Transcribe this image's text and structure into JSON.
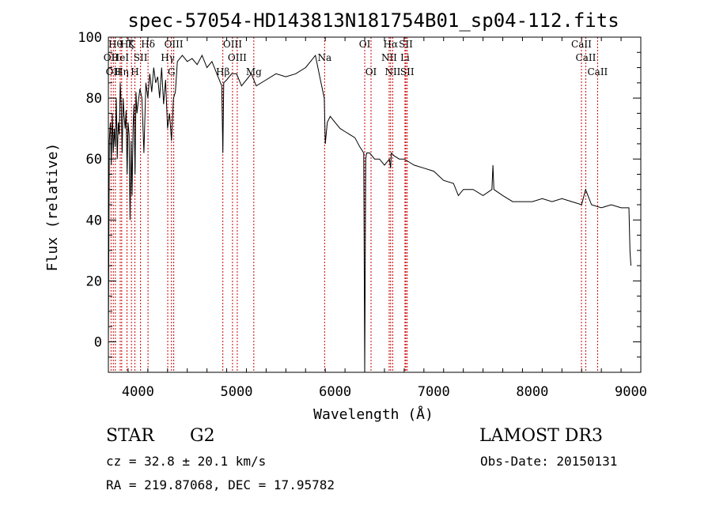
{
  "chart_data": {
    "type": "line",
    "title": "spec-57054-HD143813N181754B01_sp04-112.fits",
    "xlabel": "Wavelength (Å)",
    "ylabel": "Flux (relative)",
    "xlim": [
      3700,
      9100
    ],
    "ylim": [
      -10,
      100
    ],
    "x_ticks": [
      4000,
      5000,
      6000,
      7000,
      8000,
      9000
    ],
    "y_ticks": [
      0,
      20,
      40,
      60,
      80,
      100
    ],
    "grid": false,
    "series": [
      {
        "x": [
          3700,
          3710,
          3720,
          3730,
          3740,
          3750,
          3760,
          3770,
          3780,
          3790,
          3800,
          3810,
          3820,
          3830,
          3840,
          3850,
          3860,
          3870,
          3880,
          3890,
          3900,
          3910,
          3920,
          3930,
          3940,
          3950,
          3960,
          3970,
          3980,
          3990,
          4000,
          4020,
          4040,
          4060,
          4080,
          4100,
          4120,
          4140,
          4160,
          4180,
          4200,
          4220,
          4240,
          4260,
          4280,
          4300,
          4320,
          4340,
          4360,
          4380,
          4400,
          4450,
          4500,
          4550,
          4600,
          4650,
          4700,
          4750,
          4800,
          4850,
          4861,
          4870,
          4900,
          4950,
          5000,
          5050,
          5100,
          5150,
          5200,
          5300,
          5400,
          5500,
          5600,
          5700,
          5750,
          5800,
          5850,
          5890,
          5900,
          5920,
          5950,
          6000,
          6050,
          6100,
          6150,
          6200,
          6250,
          6290,
          6300,
          6310,
          6320,
          6350,
          6400,
          6450,
          6500,
          6550,
          6563,
          6570,
          6600,
          6650,
          6700,
          6750,
          6800,
          6900,
          7000,
          7100,
          7200,
          7250,
          7300,
          7400,
          7500,
          7590,
          7600,
          7610,
          7700,
          7800,
          7900,
          8000,
          8100,
          8200,
          8300,
          8400,
          8500,
          8540,
          8600,
          8700,
          8800,
          8900,
          8980,
          8990,
          9000
        ],
        "y": [
          0,
          66,
          72,
          58,
          75,
          62,
          70,
          64,
          80,
          60,
          72,
          68,
          85,
          78,
          62,
          80,
          74,
          70,
          76,
          55,
          72,
          68,
          40,
          66,
          48,
          70,
          78,
          55,
          82,
          75,
          78,
          83,
          80,
          62,
          85,
          80,
          88,
          82,
          90,
          85,
          87,
          80,
          90,
          78,
          86,
          70,
          75,
          66,
          80,
          82,
          92,
          94,
          92,
          93,
          91,
          94,
          90,
          92,
          88,
          84,
          62,
          85,
          86,
          88,
          88,
          84,
          86,
          88,
          84,
          86,
          88,
          87,
          88,
          90,
          92,
          94,
          86,
          80,
          65,
          72,
          74,
          72,
          70,
          69,
          68,
          67,
          64,
          62,
          -10,
          60,
          62,
          62,
          60,
          60,
          58,
          60,
          57,
          62,
          61,
          60,
          60,
          59,
          58,
          57,
          56,
          53,
          52,
          48,
          50,
          50,
          48,
          50,
          58,
          50,
          48,
          46,
          46,
          46,
          47,
          46,
          47,
          46,
          45,
          50,
          45,
          44,
          45,
          44,
          44,
          30,
          25
        ]
      }
    ],
    "line_markers": [
      {
        "wl": 3727,
        "label": "OII",
        "row": 1
      },
      {
        "wl": 3750,
        "label": "OII",
        "row": 2
      },
      {
        "wl": 3771,
        "label": "Hθ",
        "row": 0
      },
      {
        "wl": 3820,
        "label": "HeI",
        "row": 1
      },
      {
        "wl": 3835,
        "label": "Hη",
        "row": 2
      },
      {
        "wl": 3889,
        "label": "Hζ",
        "row": 0
      },
      {
        "wl": 3934,
        "label": "K",
        "row": 0
      },
      {
        "wl": 3969,
        "label": "H",
        "row": 2
      },
      {
        "wl": 4026,
        "label": "SII",
        "row": 1
      },
      {
        "wl": 4102,
        "label": "Hδ",
        "row": 0
      },
      {
        "wl": 4302,
        "label": "Hγ",
        "row": 1
      },
      {
        "wl": 4340,
        "label": "G",
        "row": 2
      },
      {
        "wl": 4363,
        "label": "OIII",
        "row": 0
      },
      {
        "wl": 4861,
        "label": "Hβ",
        "row": 2
      },
      {
        "wl": 4959,
        "label": "OIII",
        "row": 0
      },
      {
        "wl": 5007,
        "label": "OIII",
        "row": 1
      },
      {
        "wl": 5175,
        "label": "Mg",
        "row": 2
      },
      {
        "wl": 5893,
        "label": "Na",
        "row": 1
      },
      {
        "wl": 6300,
        "label": "OI",
        "row": 0
      },
      {
        "wl": 6364,
        "label": "OI",
        "row": 2
      },
      {
        "wl": 6548,
        "label": "NII",
        "row": 1
      },
      {
        "wl": 6563,
        "label": "Hα",
        "row": 0
      },
      {
        "wl": 6584,
        "label": "NII",
        "row": 2
      },
      {
        "wl": 6708,
        "label": "Li",
        "row": 1
      },
      {
        "wl": 6717,
        "label": "SII",
        "row": 0
      },
      {
        "wl": 6731,
        "label": "SII",
        "row": 2
      },
      {
        "wl": 8498,
        "label": "CaII",
        "row": 0
      },
      {
        "wl": 8542,
        "label": "CaII",
        "row": 1
      },
      {
        "wl": 8662,
        "label": "CaII",
        "row": 2
      }
    ],
    "marker_color": "#cc0000"
  },
  "info": {
    "class_label": "STAR",
    "subclass": "G2",
    "survey": "LAMOST DR3",
    "cz": "cz = 32.8 ± 20.1 km/s",
    "obs_date": "Obs-Date: 20150131",
    "coords": "RA = 219.87068, DEC =  17.95782"
  }
}
